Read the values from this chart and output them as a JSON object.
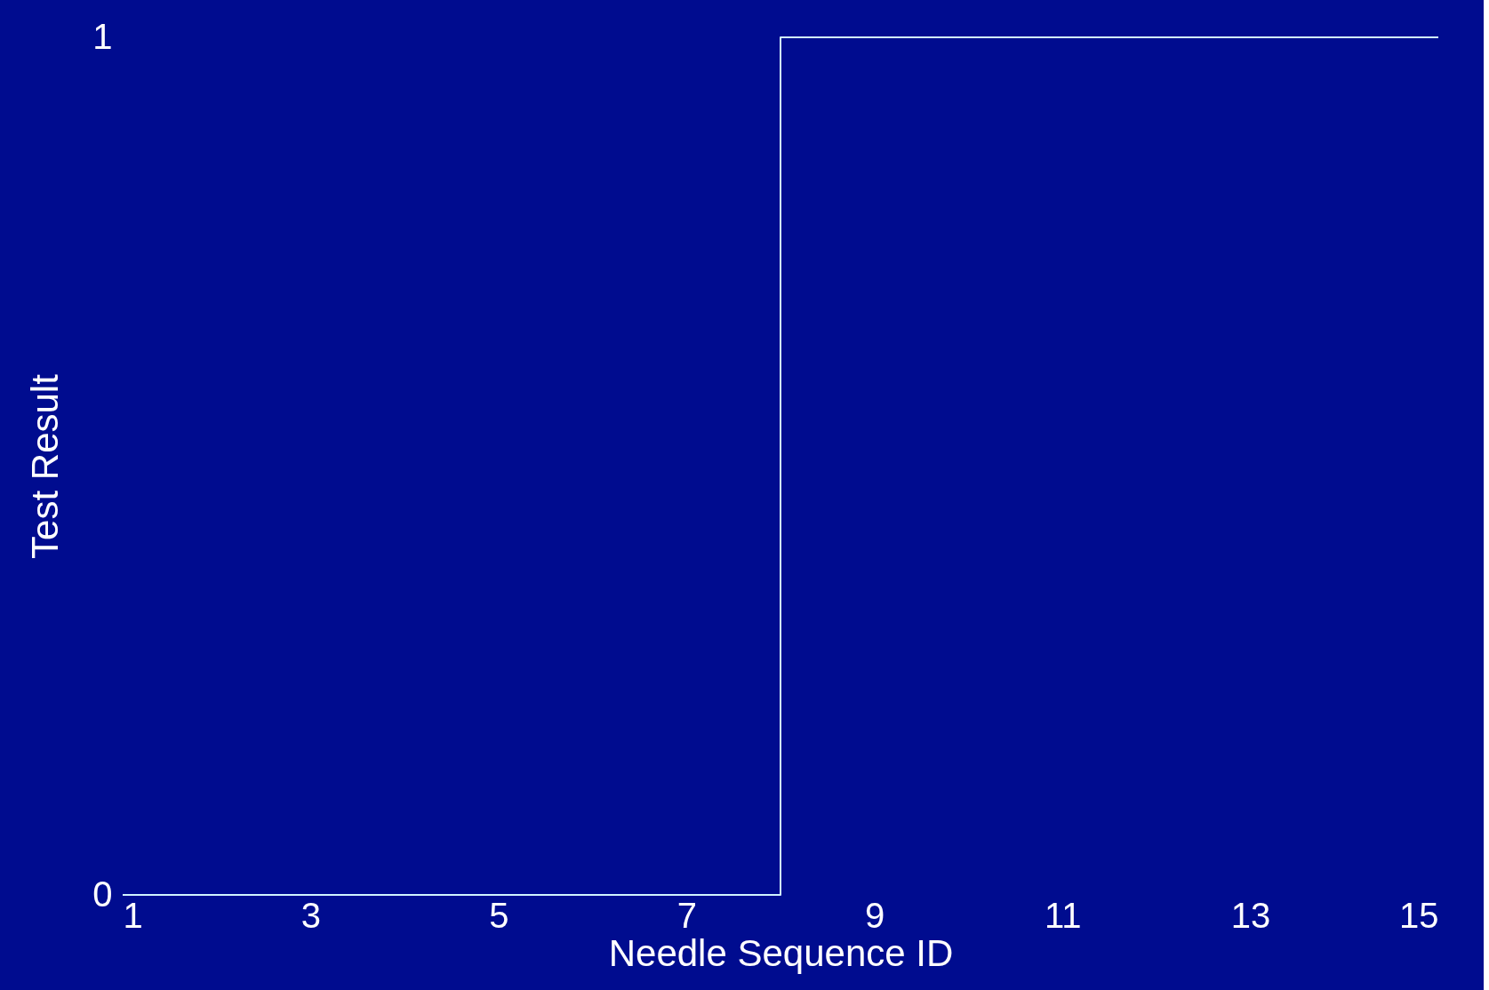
{
  "chart_data": {
    "type": "step",
    "xlabel": "Needle Sequence ID",
    "ylabel": "Test Result",
    "x": [
      1,
      2,
      3,
      4,
      5,
      6,
      7,
      8,
      9,
      10,
      11,
      12,
      13,
      14,
      15
    ],
    "series": [
      {
        "color": "#d0f4ff",
        "values": [
          0,
          0,
          0,
          0,
          0,
          0,
          0,
          1,
          1,
          1,
          1,
          1,
          1,
          1,
          1
        ]
      }
    ],
    "xlim": [
      1,
      15
    ],
    "xticks": [
      1,
      3,
      5,
      7,
      9,
      11,
      13,
      15
    ],
    "ylim": [
      0,
      1
    ],
    "yticks": [
      0,
      1
    ],
    "grid": false,
    "marker": "none",
    "line_style": "solid"
  }
}
